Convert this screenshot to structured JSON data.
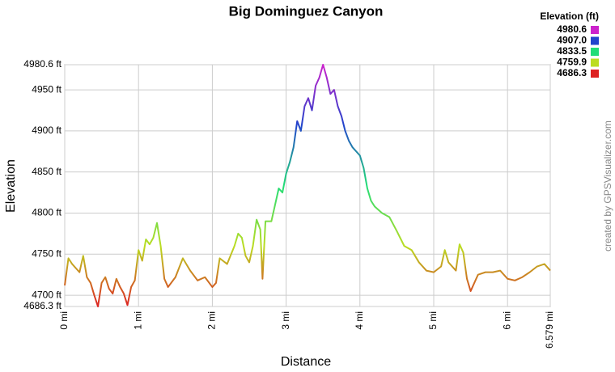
{
  "chart_data": {
    "type": "line",
    "title": "Big Dominguez Canyon",
    "x_label": "Distance",
    "y_label": "Elevation",
    "watermark": "created by GPSVisualizer.com",
    "legend_title": "Elevation (ft)",
    "legend_ticks": [
      4980.6,
      {
        "value": 4907,
        "label": "4907.0"
      },
      4833.5,
      4759.9,
      4686.3
    ],
    "legend_colors": [
      "#cc22cc",
      "#2244cc",
      "#22dd77",
      "#bbdd22",
      "#dd2222"
    ],
    "x": [
      0,
      0.05,
      0.1,
      0.2,
      0.25,
      0.3,
      0.35,
      0.4,
      0.45,
      0.5,
      0.55,
      0.6,
      0.65,
      0.7,
      0.75,
      0.8,
      0.85,
      0.9,
      0.95,
      1.0,
      1.05,
      1.1,
      1.15,
      1.2,
      1.25,
      1.3,
      1.35,
      1.4,
      1.5,
      1.6,
      1.7,
      1.8,
      1.9,
      2.0,
      2.05,
      2.1,
      2.2,
      2.3,
      2.35,
      2.4,
      2.45,
      2.5,
      2.55,
      2.6,
      2.65,
      2.68,
      2.72,
      2.8,
      2.9,
      2.95,
      3.0,
      3.05,
      3.1,
      3.15,
      3.2,
      3.25,
      3.3,
      3.35,
      3.4,
      3.45,
      3.5,
      3.55,
      3.6,
      3.65,
      3.7,
      3.75,
      3.8,
      3.85,
      3.9,
      4.0,
      4.05,
      4.1,
      4.15,
      4.2,
      4.3,
      4.4,
      4.5,
      4.6,
      4.7,
      4.8,
      4.9,
      5.0,
      5.1,
      5.15,
      5.2,
      5.3,
      5.35,
      5.4,
      5.45,
      5.5,
      5.6,
      5.7,
      5.8,
      5.9,
      6.0,
      6.1,
      6.2,
      6.3,
      6.4,
      6.5,
      6.579
    ],
    "values": [
      4712,
      4745,
      4738,
      4728,
      4748,
      4722,
      4715,
      4700,
      4686.3,
      4715,
      4722,
      4708,
      4702,
      4720,
      4710,
      4702,
      4688,
      4710,
      4718,
      4755,
      4742,
      4768,
      4762,
      4770,
      4788,
      4760,
      4720,
      4710,
      4722,
      4745,
      4730,
      4718,
      4722,
      4710,
      4715,
      4745,
      4738,
      4760,
      4775,
      4770,
      4748,
      4740,
      4760,
      4792,
      4780,
      4720,
      4790,
      4790,
      4830,
      4825,
      4848,
      4862,
      4880,
      4912,
      4900,
      4930,
      4940,
      4925,
      4955,
      4965,
      4980.6,
      4965,
      4945,
      4950,
      4930,
      4918,
      4900,
      4888,
      4880,
      4870,
      4855,
      4830,
      4815,
      4808,
      4800,
      4795,
      4778,
      4760,
      4755,
      4740,
      4730,
      4728,
      4735,
      4755,
      4740,
      4730,
      4762,
      4752,
      4720,
      4705,
      4725,
      4728,
      4728,
      4730,
      4720,
      4718,
      4722,
      4728,
      4735,
      4738,
      4730
    ],
    "xlim": [
      0,
      6.579
    ],
    "ylim": [
      4686.3,
      4980.6
    ],
    "xticks": [
      {
        "value": 0,
        "label": "0 mi"
      },
      {
        "value": 1,
        "label": "1 mi"
      },
      {
        "value": 2,
        "label": "2 mi"
      },
      {
        "value": 3,
        "label": "3 mi"
      },
      {
        "value": 4,
        "label": "4 mi"
      },
      {
        "value": 5,
        "label": "5 mi"
      },
      {
        "value": 6,
        "label": "6 mi"
      },
      {
        "value": 6.579,
        "label": "6.579 mi"
      }
    ],
    "yticks": [
      {
        "value": 4686.3,
        "label": "4686.3 ft"
      },
      {
        "value": 4700,
        "label": "4700 ft"
      },
      {
        "value": 4750,
        "label": "4750 ft"
      },
      {
        "value": 4800,
        "label": "4800 ft"
      },
      {
        "value": 4850,
        "label": "4850 ft"
      },
      {
        "value": 4900,
        "label": "4900 ft"
      },
      {
        "value": 4950,
        "label": "4950 ft"
      },
      {
        "value": 4980.6,
        "label": "4980.6 ft"
      }
    ],
    "grid": true
  }
}
